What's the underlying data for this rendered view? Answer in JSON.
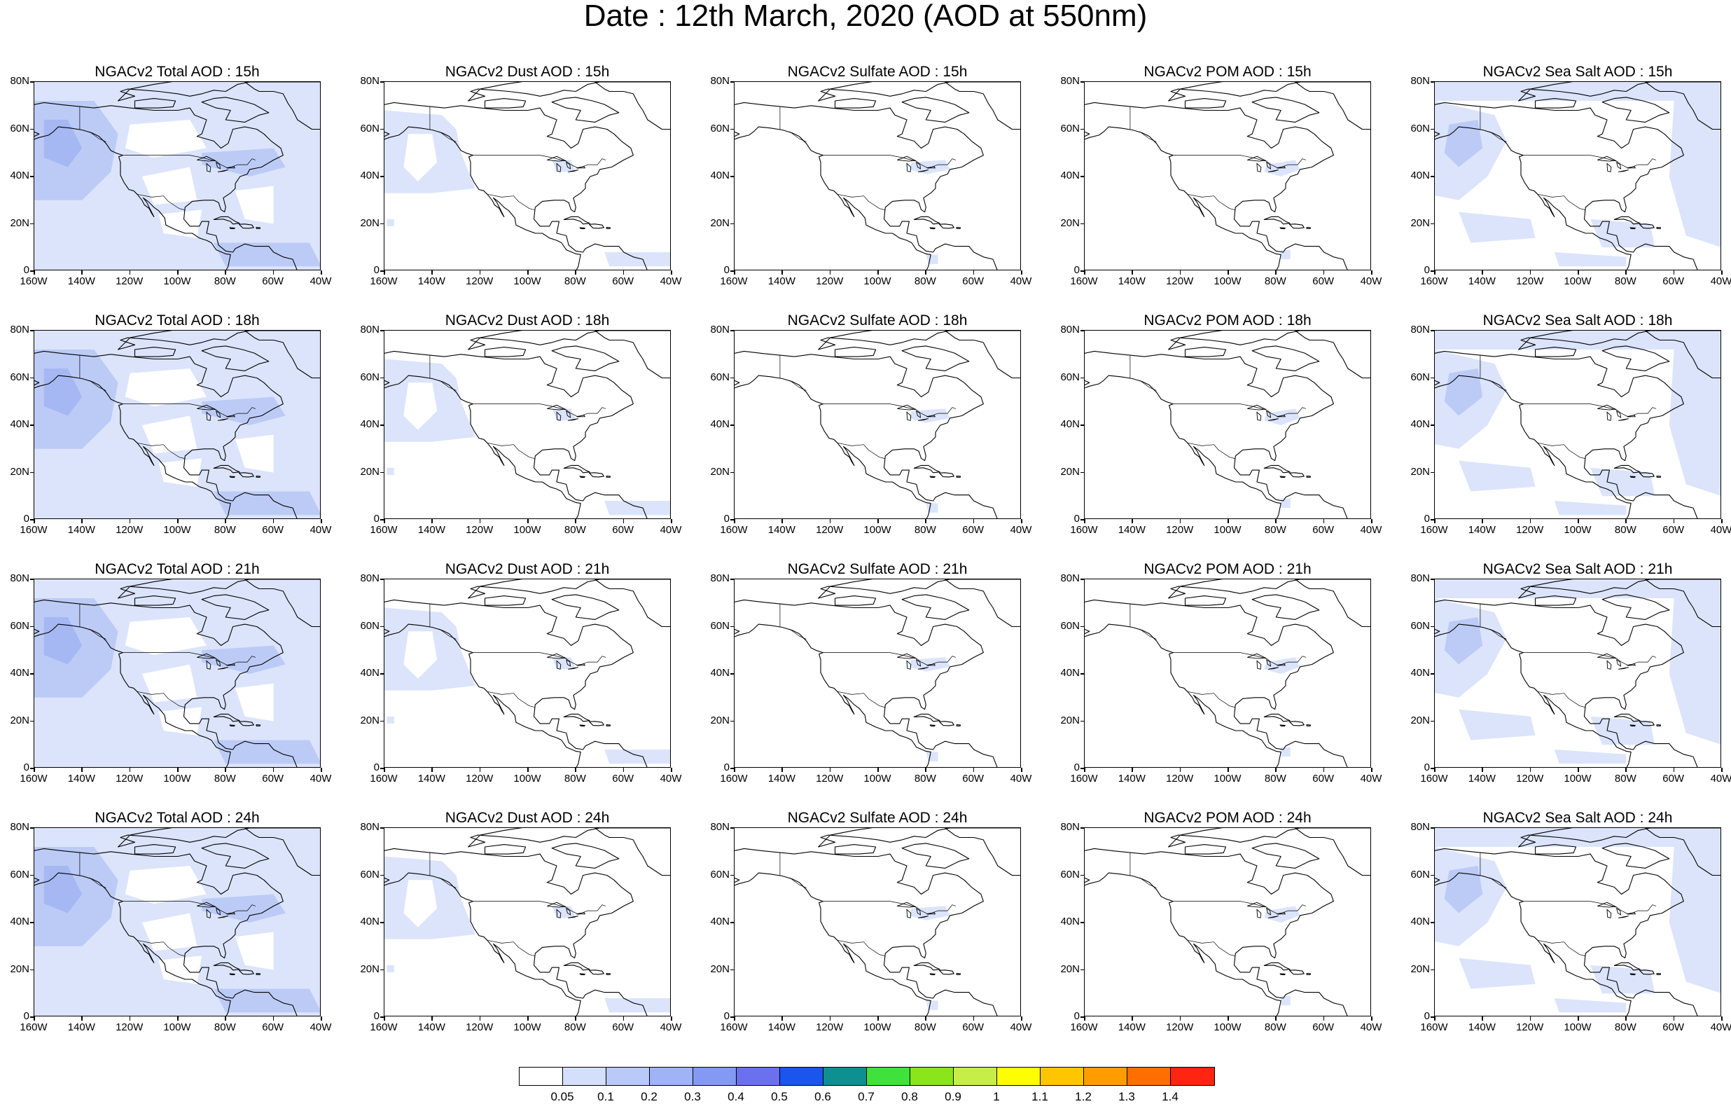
{
  "title": "Date : 12th March, 2020 (AOD at 550nm)",
  "axes": {
    "lat_labels": [
      "80N",
      "60N",
      "40N",
      "20N",
      "0"
    ],
    "lon_labels": [
      "160W",
      "140W",
      "120W",
      "100W",
      "80W",
      "60W",
      "40W"
    ],
    "lat_range": [
      0,
      80
    ],
    "lon_range": [
      -160,
      -40
    ]
  },
  "columns": [
    "Total",
    "Dust",
    "Sulfate",
    "POM",
    "Sea Salt"
  ],
  "rows": [
    "15h",
    "18h",
    "21h",
    "24h"
  ],
  "panel_titles": [
    [
      "NGACv2 Total AOD : 15h",
      "NGACv2 Dust AOD : 15h",
      "NGACv2 Sulfate AOD : 15h",
      "NGACv2 POM AOD : 15h",
      "NGACv2 Sea Salt AOD : 15h"
    ],
    [
      "NGACv2 Total AOD : 18h",
      "NGACv2 Dust AOD : 18h",
      "NGACv2 Sulfate AOD : 18h",
      "NGACv2 POM AOD : 18h",
      "NGACv2 Sea Salt AOD : 18h"
    ],
    [
      "NGACv2 Total AOD : 21h",
      "NGACv2 Dust AOD : 21h",
      "NGACv2 Sulfate AOD : 21h",
      "NGACv2 POM AOD : 21h",
      "NGACv2 Sea Salt AOD : 21h"
    ],
    [
      "NGACv2 Total AOD : 24h",
      "NGACv2 Dust AOD : 24h",
      "NGACv2 Sulfate AOD : 24h",
      "NGACv2 POM AOD : 24h",
      "NGACv2 Sea Salt  AOD : 24h"
    ]
  ],
  "colorbar": {
    "labels": [
      "0.05",
      "0.1",
      "0.2",
      "0.3",
      "0.4",
      "0.5",
      "0.6",
      "0.7",
      "0.8",
      "0.9",
      "1",
      "1.1",
      "1.2",
      "1.3",
      "1.4"
    ],
    "colors": [
      "#ffffff",
      "#d4dffb",
      "#b9c9f8",
      "#9fb4f6",
      "#8399f3",
      "#6a70ee",
      "#1a55ee",
      "#0f9090",
      "#3fe13b",
      "#8ae51b",
      "#c6ee46",
      "#fefe00",
      "#ffc600",
      "#ff9c00",
      "#ff6e00",
      "#ff2510"
    ]
  },
  "colors": {
    "aod_low": "#dbe4fb",
    "aod_mid": "#bccbf6",
    "aod_high": "#a6b8f3",
    "coast": "#000000"
  }
}
